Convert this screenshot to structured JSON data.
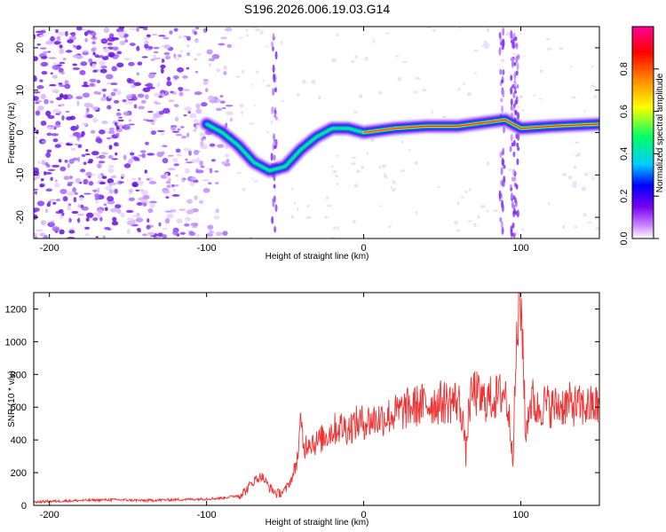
{
  "figure": {
    "title": "S196.2026.006.19.03.G14"
  },
  "chart_data": [
    {
      "type": "heatmap",
      "name": "spectrogram",
      "xlabel": "Height of straight line (km)",
      "ylabel": "Frequency (Hz)",
      "xlim": [
        -210,
        150
      ],
      "ylim": [
        -25,
        25
      ],
      "x_ticks": [
        -200,
        -100,
        0,
        100
      ],
      "y_ticks": [
        -20,
        -10,
        0,
        10,
        20
      ],
      "colorbar": {
        "label": "Normalized spectral amplitude",
        "range": [
          0,
          1
        ],
        "ticks": [
          0.0,
          0.2,
          0.4,
          0.6,
          0.8
        ],
        "tick_labels": [
          "0.0",
          "0.2",
          "0.4",
          "0.6",
          "0.8"
        ],
        "colors": [
          "#ffffff",
          "#cc66ff",
          "#7700ee",
          "#0000ff",
          "#00ccff",
          "#00ff66",
          "#ffff00",
          "#ff8800",
          "#ff0000",
          "#ff0099"
        ]
      },
      "ridge": {
        "x": [
          -100,
          -90,
          -80,
          -70,
          -60,
          -50,
          -40,
          -30,
          -20,
          -10,
          0,
          20,
          40,
          60,
          80,
          90,
          100,
          120,
          150
        ],
        "y": [
          2,
          0,
          -3,
          -7,
          -9,
          -8,
          -4,
          -1,
          1,
          1,
          0,
          1,
          1.5,
          1.5,
          2.5,
          3,
          1,
          1.5,
          2
        ]
      }
    },
    {
      "type": "line",
      "name": "snr",
      "xlabel": "Height of straight line (km)",
      "ylabel": "SNR (10 * v/v)",
      "xlim": [
        -210,
        150
      ],
      "ylim": [
        0,
        1300
      ],
      "x_ticks": [
        -200,
        -100,
        0,
        100
      ],
      "y_ticks": [
        0,
        200,
        400,
        600,
        800,
        1000,
        1200
      ],
      "series": [
        {
          "name": "SNR",
          "color": "#ee3333",
          "x": [
            -210,
            -200,
            -180,
            -160,
            -140,
            -120,
            -100,
            -90,
            -80,
            -75,
            -70,
            -65,
            -60,
            -55,
            -50,
            -45,
            -42,
            -40,
            -38,
            -35,
            -30,
            -25,
            -20,
            -15,
            -10,
            -5,
            0,
            10,
            20,
            30,
            40,
            50,
            60,
            63,
            65,
            67,
            70,
            75,
            80,
            85,
            90,
            93,
            95,
            97,
            99,
            101,
            103,
            105,
            108,
            110,
            115,
            120,
            130,
            140,
            150
          ],
          "y": [
            20,
            25,
            30,
            35,
            30,
            35,
            40,
            45,
            60,
            90,
            150,
            180,
            110,
            70,
            90,
            180,
            300,
            500,
            350,
            400,
            380,
            420,
            460,
            480,
            470,
            500,
            510,
            530,
            560,
            600,
            620,
            630,
            640,
            550,
            300,
            600,
            700,
            640,
            650,
            660,
            700,
            500,
            300,
            900,
            1250,
            1100,
            400,
            600,
            650,
            580,
            620,
            600,
            620,
            600,
            610
          ]
        }
      ]
    }
  ]
}
